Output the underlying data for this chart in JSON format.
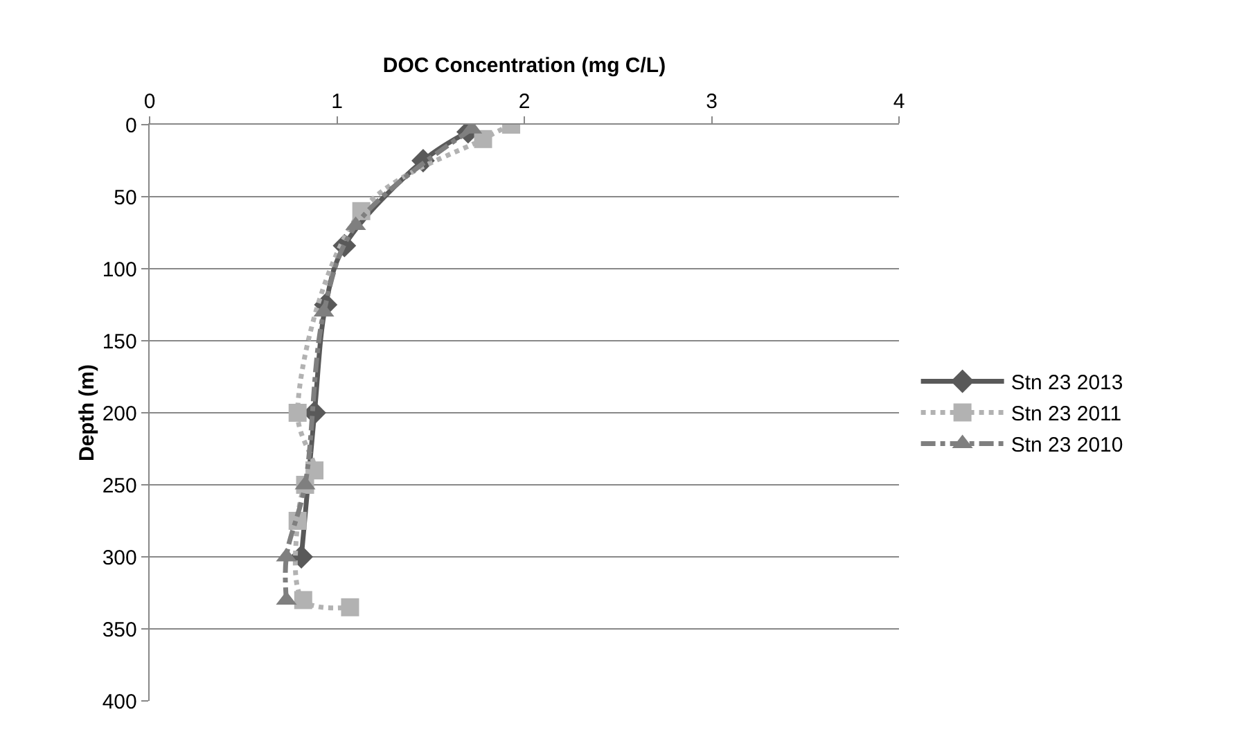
{
  "chart_data": {
    "type": "line",
    "xlabel": "DOC Concentration (mg C/L)",
    "ylabel": "Depth (m)",
    "xlim": [
      0,
      4
    ],
    "xticks": [
      0,
      1,
      2,
      3,
      4
    ],
    "ylim": [
      400,
      0
    ],
    "yticks": [
      0,
      50,
      100,
      150,
      200,
      250,
      300,
      350,
      400
    ],
    "grid": "y",
    "legend": "right",
    "series": [
      {
        "name": "Stn 23 2013",
        "color": "#595959",
        "marker": "diamond",
        "line_style": "solid",
        "x": [
          1.7,
          1.46,
          1.04,
          0.94,
          0.88,
          0.81
        ],
        "values": [
          5,
          25,
          84,
          125,
          200,
          300
        ]
      },
      {
        "name": "Stn 23 2011",
        "color": "#b2b2b2",
        "marker": "square",
        "line_style": "dotted",
        "x": [
          1.93,
          1.78,
          1.13,
          0.79,
          0.88,
          0.83,
          0.79,
          0.82,
          1.07
        ],
        "values": [
          0,
          10,
          60,
          200,
          240,
          250,
          275,
          330,
          335
        ]
      },
      {
        "name": "Stn 23 2010",
        "color": "#7f7f7f",
        "marker": "triangle",
        "line_style": "dashdot",
        "x": [
          1.72,
          1.1,
          0.93,
          0.83,
          0.73,
          0.73
        ],
        "values": [
          3,
          70,
          130,
          250,
          300,
          330
        ]
      }
    ]
  }
}
